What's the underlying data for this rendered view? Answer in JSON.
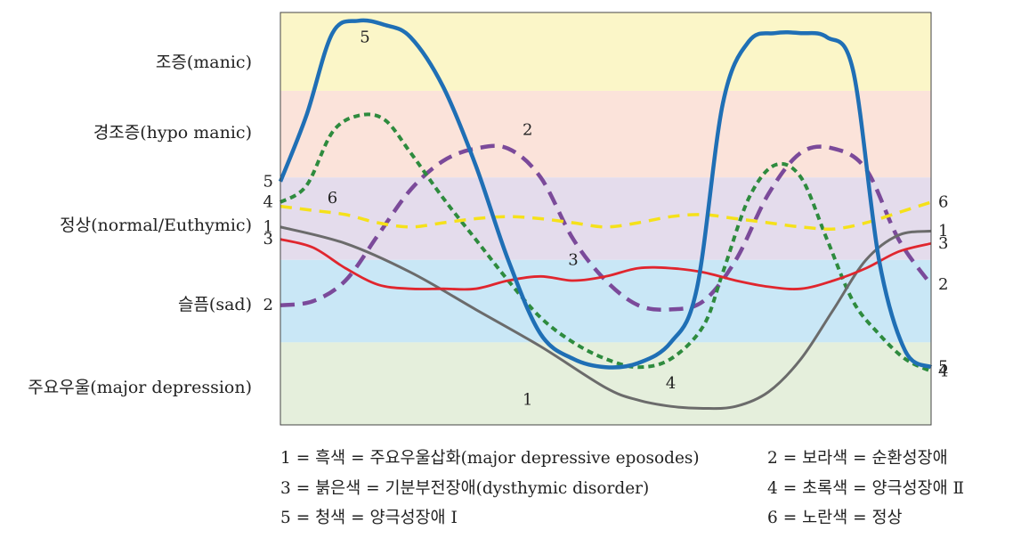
{
  "chart_data": {
    "type": "line",
    "title": "",
    "xlabel": "",
    "ylabel": "",
    "x_range": [
      0,
      100
    ],
    "ylim": [
      0,
      100
    ],
    "grid": false,
    "bands": [
      {
        "name": "manic",
        "label": "조증(manic)",
        "range": [
          81,
          100
        ],
        "color": "#fbf6c8"
      },
      {
        "name": "hypo-manic",
        "label": "경조증(hypo manic)",
        "range": [
          60,
          81
        ],
        "color": "#fbe3da"
      },
      {
        "name": "normal",
        "label": "정상(normal/Euthymic)",
        "range": [
          40,
          60
        ],
        "color": "#e4dcec"
      },
      {
        "name": "sad",
        "label": "슬픔(sad)",
        "range": [
          20,
          40
        ],
        "color": "#c9e7f6"
      },
      {
        "name": "major-depression",
        "label": "주요우울(major depression)",
        "range": [
          0,
          20
        ],
        "color": "#e5efdc"
      }
    ],
    "series": [
      {
        "id": "1",
        "name": "흑색 = 주요우울삽화(major depressive eposodes)",
        "color": "#6b6b6b",
        "dash": "solid",
        "x": [
          0,
          10,
          20,
          30,
          40,
          50,
          55,
          60,
          65,
          70,
          75,
          80,
          85,
          90,
          95,
          100
        ],
        "y": [
          48,
          44,
          37,
          28,
          19,
          9,
          6,
          4.5,
          4,
          4.5,
          8,
          16,
          28,
          40,
          46,
          47
        ],
        "start_label": "1",
        "end_label": "1",
        "mid_label": {
          "text": "1",
          "x": 38,
          "y": 6
        }
      },
      {
        "id": "2",
        "name": "보라색 = 순환성장애",
        "color": "#7b4a9a",
        "dash": "dashed",
        "x": [
          0,
          5,
          10,
          15,
          20,
          25,
          30,
          35,
          40,
          45,
          50,
          55,
          60,
          65,
          70,
          75,
          80,
          85,
          90,
          95,
          100
        ],
        "y": [
          29,
          30,
          35,
          46,
          57,
          64,
          67,
          67,
          60,
          45,
          35,
          29,
          28,
          30,
          40,
          56,
          66,
          67,
          62,
          45,
          34
        ],
        "start_label": "2",
        "end_label": "2",
        "mid_label": {
          "text": "2",
          "x": 38,
          "y": 71.5
        }
      },
      {
        "id": "3",
        "name": "붉은색 = 기분부전장애(dysthymic disorder)",
        "color": "#e0262e",
        "dash": "solid",
        "x": [
          0,
          5,
          10,
          15,
          20,
          25,
          30,
          35,
          40,
          45,
          50,
          55,
          60,
          65,
          70,
          75,
          80,
          85,
          90,
          95,
          100
        ],
        "y": [
          45,
          43,
          38,
          34,
          33,
          33,
          33,
          35,
          36,
          35,
          36,
          38,
          38,
          37,
          35,
          33.5,
          33,
          35,
          38,
          42,
          44
        ],
        "start_label": "3",
        "end_label": "3",
        "mid_label": {
          "text": "3",
          "x": 45,
          "y": 40
        }
      },
      {
        "id": "4",
        "name": "초록색 = 양극성장애 Ⅱ",
        "color": "#2e8b3e",
        "dash": "dashed",
        "x": [
          0,
          4,
          8,
          12,
          16,
          20,
          25,
          30,
          35,
          40,
          45,
          50,
          55,
          60,
          65,
          68,
          72,
          76,
          80,
          84,
          88,
          92,
          96,
          100
        ],
        "y": [
          54,
          58,
          71,
          75,
          74,
          66,
          55,
          45,
          35,
          26,
          20,
          16,
          14,
          16,
          24,
          37,
          55,
          63,
          60,
          45,
          30,
          22,
          16,
          13
        ],
        "start_label": "4",
        "end_label": "4",
        "mid_label": {
          "text": "4",
          "x": 60,
          "y": 10
        }
      },
      {
        "id": "5",
        "name": "청색 = 양극성장애 Ⅰ",
        "color": "#1f6fb5",
        "dash": "solid",
        "x": [
          0,
          4,
          8,
          12,
          16,
          20,
          25,
          30,
          35,
          40,
          45,
          50,
          55,
          60,
          64,
          68,
          72,
          76,
          80,
          84,
          88,
          92,
          96,
          100
        ],
        "y": [
          59,
          75,
          95,
          98,
          97,
          94,
          82,
          63,
          40,
          22,
          16,
          14,
          15,
          20,
          33,
          78,
          93,
          95,
          95,
          94,
          86,
          40,
          18,
          14
        ],
        "start_label": "5",
        "end_label": "5",
        "mid_label": {
          "text": "5",
          "x": 13,
          "y": 94
        }
      },
      {
        "id": "6",
        "name": "노란색 = 정상",
        "color": "#f5e11a",
        "dash": "dashed",
        "x": [
          0,
          5,
          10,
          15,
          20,
          25,
          30,
          35,
          40,
          45,
          50,
          55,
          60,
          65,
          70,
          75,
          80,
          85,
          90,
          95,
          100
        ],
        "y": [
          53,
          52,
          51,
          49,
          48,
          49,
          50,
          50.5,
          50,
          49,
          48,
          49,
          50.5,
          51,
          50,
          49,
          48,
          47.5,
          49,
          51.5,
          54
        ],
        "start_label": "",
        "end_label": "6",
        "mid_label": {
          "text": "6",
          "x": 8,
          "y": 55
        }
      }
    ],
    "legend": {
      "position": "bottom",
      "items": [
        {
          "num": "1",
          "text": "= 흑색 = 주요우울삽화(major depressive eposodes)"
        },
        {
          "num": "2",
          "text": "= 보라색 = 순환성장애"
        },
        {
          "num": "3",
          "text": "= 붉은색 = 기분부전장애(dysthymic disorder)"
        },
        {
          "num": "4",
          "text": "= 초록색 = 양극성장애 Ⅱ"
        },
        {
          "num": "5",
          "text": "= 청색 = 양극성장애 Ⅰ"
        },
        {
          "num": "6",
          "text": "= 노란색 = 정상"
        }
      ]
    }
  }
}
